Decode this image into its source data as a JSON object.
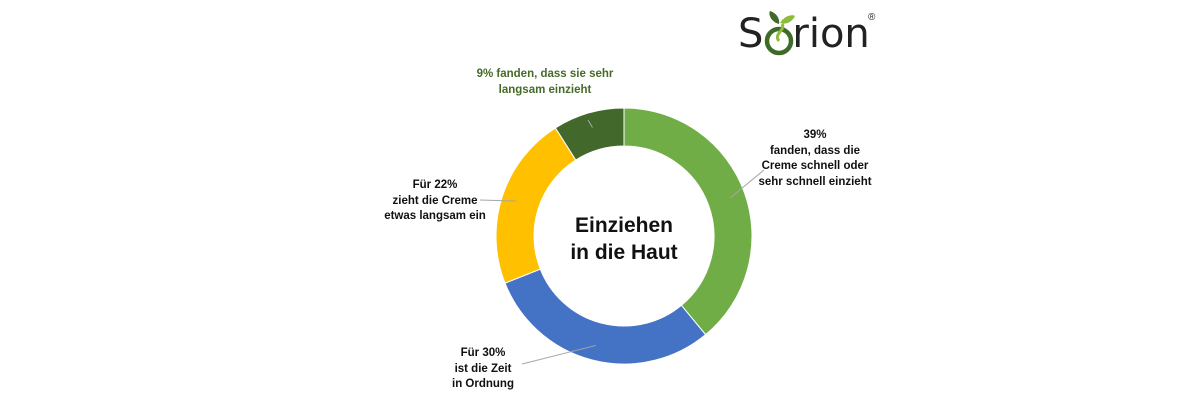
{
  "brand": {
    "name_prefix": "S",
    "name_suffix": "rion",
    "registered": "®",
    "colors": {
      "leaf_dark": "#3f6b2a",
      "leaf_light": "#8dbb3a",
      "text": "#222222"
    }
  },
  "chart_data": {
    "type": "pie",
    "title": "Einziehen in die Haut",
    "title_lines": [
      "Einziehen",
      "in die Haut"
    ],
    "slices": [
      {
        "value": 39,
        "color": "#70ad47",
        "label_lines": [
          "39%",
          "fanden, dass die",
          "Creme schnell oder",
          "sehr schnell einzieht"
        ]
      },
      {
        "value": 30,
        "color": "#4472c4",
        "label_lines": [
          "Für 30%",
          "ist die Zeit",
          "in Ordnung"
        ]
      },
      {
        "value": 22,
        "color": "#ffc000",
        "label_lines": [
          "Für 22%",
          "zieht die Creme",
          "etwas langsam ein"
        ]
      },
      {
        "value": 9,
        "color": "#43682b",
        "label_lines": [
          "9% fanden, dass sie sehr",
          "langsam einzieht"
        ]
      }
    ],
    "donut": true,
    "legend": "none"
  }
}
